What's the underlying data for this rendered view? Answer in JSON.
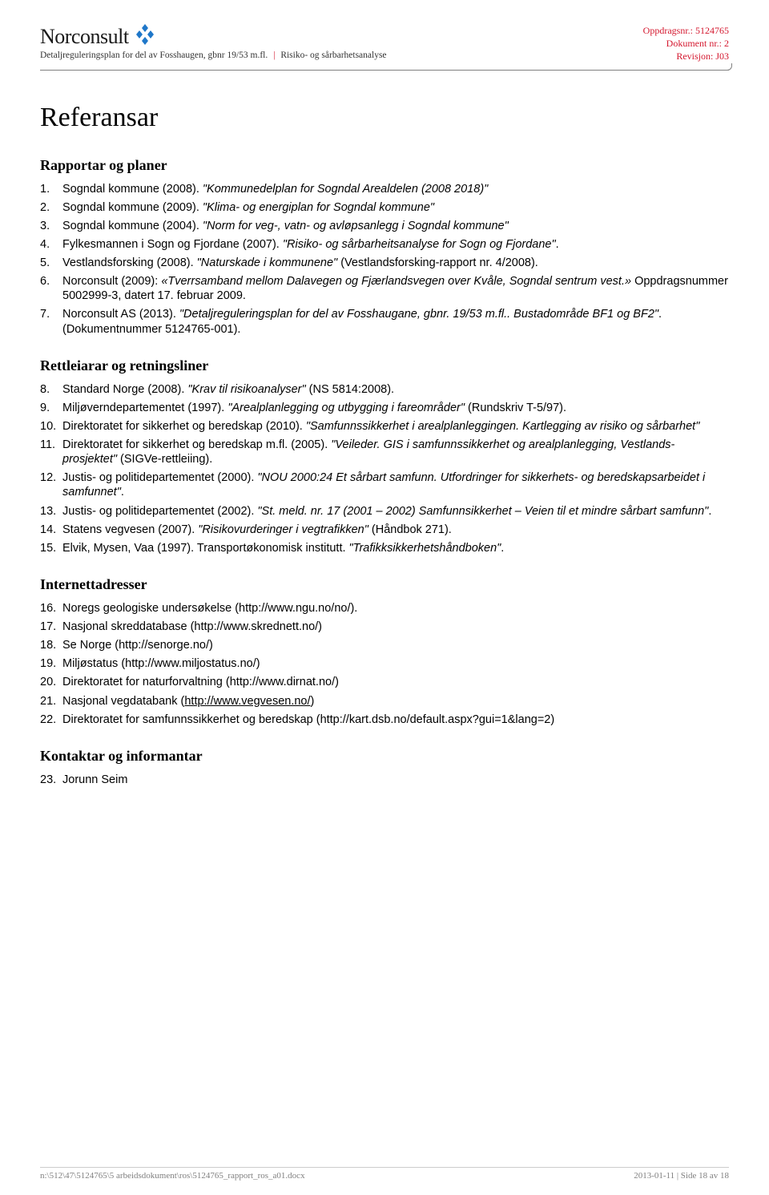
{
  "header": {
    "logo_text": "Norconsult",
    "sub_left": "Detaljreguleringsplan for del av Fosshaugen, gbnr 19/53 m.fl.",
    "sub_right": "Risiko- og sårbarhetsanalyse",
    "meta1": "Oppdragsnr.: 5124765",
    "meta2": "Dokument nr.: 2",
    "meta3": "Revisjon: J03"
  },
  "title": "Referansar",
  "sections": {
    "s1": {
      "heading": "Rapportar og planer",
      "items": {
        "1": "Sogndal kommune (2008). <span class=\"italic\">\"Kommunedelplan for Sogndal Arealdelen (2008 2018)\"</span>",
        "2": "Sogndal kommune (2009). <span class=\"italic\">\"Klima- og energiplan for Sogndal kommune\"</span>",
        "3": "Sogndal kommune (2004). <span class=\"italic\">\"Norm for veg-, vatn- og avløpsanlegg i Sogndal kommune\"</span>",
        "4": "Fylkesmannen i Sogn og Fjordane (2007). <span class=\"italic\">\"Risiko- og sårbarheitsanalyse for Sogn og Fjordane\"</span>.",
        "5": "Vestlandsforsking (2008). <span class=\"italic\">\"Naturskade i kommunene\"</span> (Vestlandsforsking-rapport nr. 4/2008).",
        "6": "Norconsult (2009): <span class=\"italic\">«Tverrsamband mellom Dalavegen og Fjærlandsvegen over Kvåle, Sogndal sentrum vest.»</span> Oppdragsnummer 5002999-3, datert 17. februar 2009.",
        "7": "Norconsult AS (2013). <span class=\"italic\">\"Detaljreguleringsplan for del av Fosshaugane, gbnr. 19/53 m.fl.. Bustadområde BF1 og BF2\"</span>. (Dokumentnummer 5124765-001)."
      }
    },
    "s2": {
      "heading": "Rettleiarar og retningsliner",
      "items": {
        "8": "Standard Norge (2008). <span class=\"italic\">\"Krav til risikoanalyser\"</span> (NS 5814:2008).",
        "9": "Miljøverndepartementet (1997). <span class=\"italic\">\"Arealplanlegging og utbygging i fareområder\"</span> (Rundskriv T-5/97).",
        "10": "Direktoratet for sikkerhet og beredskap (2010). <span class=\"italic\">\"Samfunnssikkerhet i arealplanleggingen. Kartlegging av risiko og sårbarhet\"</span>",
        "11": "Direktoratet for sikkerhet og beredskap m.fl. (2005). <span class=\"italic\">\"Veileder. GIS i samfunnssikkerhet og arealplanlegging, Vestlands-prosjektet\"</span> (SIGVe-rettleiing).",
        "12": "Justis- og politidepartementet (2000). <span class=\"italic\">\"NOU 2000:24 Et sårbart samfunn. Utfordringer for sikkerhets- og beredskapsarbeidet i samfunnet\"</span>.",
        "13": "Justis- og politidepartementet (2002). <span class=\"italic\">\"St. meld. nr. 17 (2001 – 2002) Samfunnsikkerhet – Veien til et mindre sårbart samfunn\"</span>.",
        "14": "Statens vegvesen (2007). <span class=\"italic\">\"Risikovurderinger i vegtrafikken\"</span> (Håndbok 271).",
        "15": "Elvik, Mysen, Vaa (1997). Transportøkonomisk institutt. <span class=\"italic\">\"Trafikksikkerhetshåndboken\"</span>."
      }
    },
    "s3": {
      "heading": "Internettadresser",
      "items": {
        "16": "Noregs geologiske undersøkelse (http://www.ngu.no/no/).",
        "17": "Nasjonal skreddatabase (http://www.skrednett.no/)",
        "18": "Se Norge (http://senorge.no/)",
        "19": "Miljøstatus (http://www.miljostatus.no/)",
        "20": "Direktoratet for naturforvaltning (http://www.dirnat.no/)",
        "21": "Nasjonal vegdatabank (<span class=\"underline\">http://www.vegvesen.no/</span>)",
        "22": "Direktoratet for samfunnssikkerhet og beredskap (http://kart.dsb.no/default.aspx?gui=1&lang=2)"
      }
    },
    "s4": {
      "heading": "Kontaktar og informantar",
      "items": {
        "23": "Jorunn Seim"
      }
    }
  },
  "footer": {
    "left": "n:\\512\\47\\5124765\\5 arbeidsdokument\\ros\\5124765_rapport_ros_a01.docx",
    "right": "2013-01-11 | Side 18 av 18"
  },
  "colors": {
    "accent": "#d4172e",
    "logo_blue": "#1f77c9"
  }
}
